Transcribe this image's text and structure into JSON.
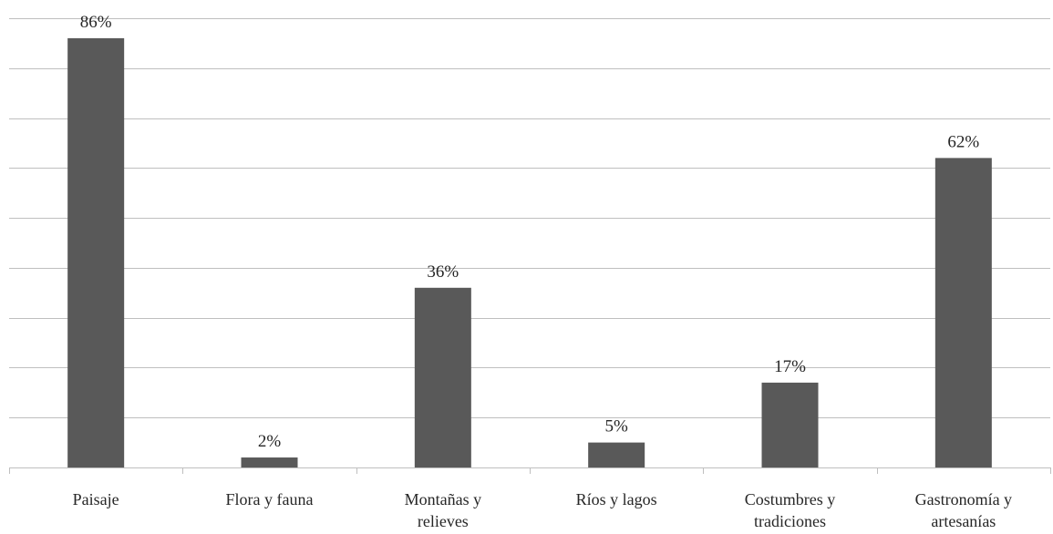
{
  "chart_data": {
    "type": "bar",
    "categories": [
      [
        "Paisaje"
      ],
      [
        "Flora y fauna"
      ],
      [
        "Montañas y",
        "relieves"
      ],
      [
        "Ríos y lagos"
      ],
      [
        "Costumbres y",
        "tradiciones"
      ],
      [
        "Gastronomía y",
        "artesanías"
      ]
    ],
    "values": [
      86,
      2,
      36,
      5,
      17,
      62
    ],
    "data_labels": [
      "86%",
      "2%",
      "36%",
      "5%",
      "17%",
      "62%"
    ],
    "title": "",
    "xlabel": "",
    "ylabel": "",
    "ylim": [
      0,
      90
    ],
    "gridlines": 9,
    "grid": true,
    "legend": "none",
    "bar_color": "#595959",
    "grid_color": "#bfbfbf",
    "text_color": "#262626"
  }
}
